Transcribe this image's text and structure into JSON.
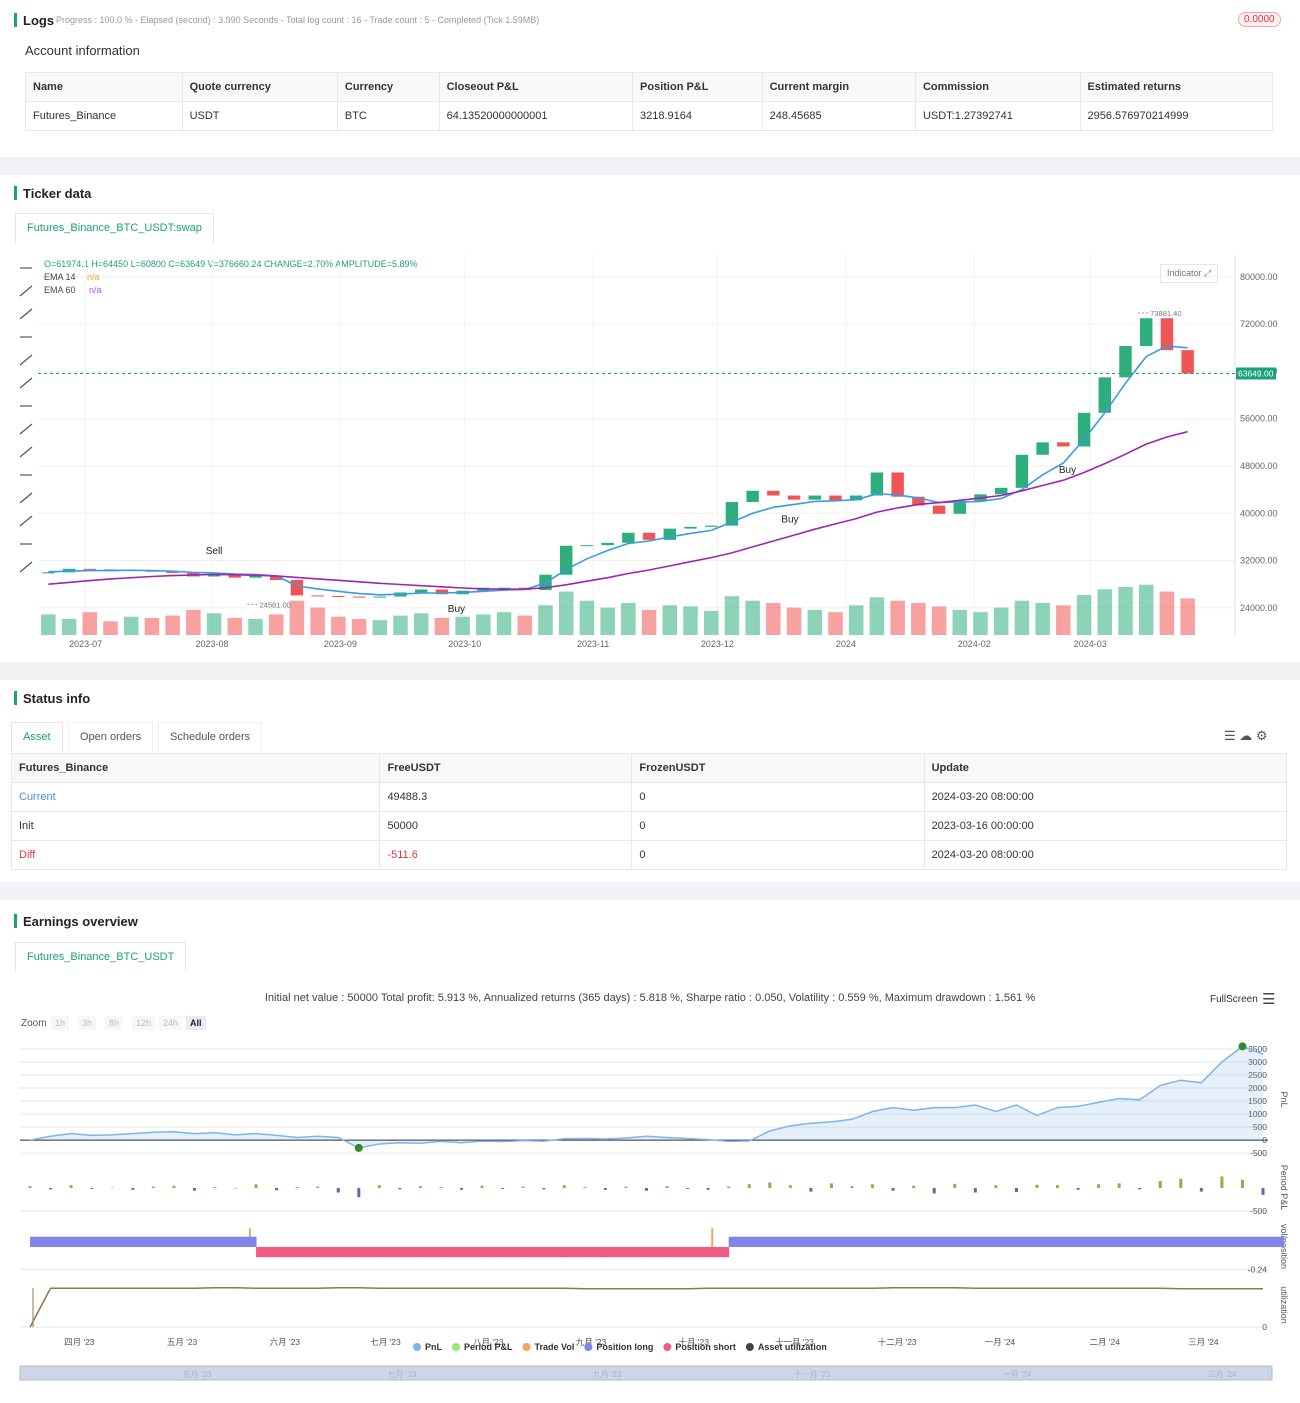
{
  "logs": {
    "title": "Logs",
    "progress": "Progress : 100.0 % - Elapsed (second) : 3.990  Seconds - Total log count : 16 - Trade count : 5 - Completed (Tick 1.59MB)",
    "badge": "0.0000",
    "account_title": "Account information",
    "table": {
      "columns": [
        "Name",
        "Quote currency",
        "Currency",
        "Closeout P&L",
        "Position P&L",
        "Current margin",
        "Commission",
        "Estimated returns"
      ],
      "rows": [
        [
          "Futures_Binance",
          "USDT",
          "BTC",
          "64.13520000000001",
          "3218.9164",
          "248.45685",
          "USDT:1.27392741",
          "2956.576970214999"
        ]
      ]
    }
  },
  "ticker": {
    "title": "Ticker data",
    "tab": "Futures_Binance_BTC_USDT:swap",
    "ohlc": "O=61974.1 H=64450 L=60800 C=63649 V=376660.24 CHANGE=2.70% AMPLITUDE=5.89%",
    "indicator": "Indicator"
  },
  "status": {
    "title": "Status info",
    "tabs": [
      "Asset",
      "Open orders",
      "Schedule orders"
    ],
    "table": {
      "columns": [
        "Futures_Binance",
        "FreeUSDT",
        "FrozenUSDT",
        "Update"
      ],
      "rows": [
        [
          "Current",
          "49488.3",
          "0",
          "2024-03-20 08:00:00"
        ],
        [
          "Init",
          "50000",
          "0",
          "2023-03-16 00:00:00"
        ],
        [
          "Diff",
          "-511.6",
          "0",
          "2024-03-20 08:00:00"
        ]
      ]
    }
  },
  "earnings": {
    "title": "Earnings overview",
    "tab": "Futures_Binance_BTC_USDT",
    "summary": "Initial net value : 50000 Total profit: 5.913 %, Annualized returns (365 days) : 5.818 %, Sharpe ratio : 0.050, Volatility : 0.559 %, Maximum drawdown : 1.561 %",
    "zoom_label": "Zoom",
    "zoom_buttons": [
      "1h",
      "3h",
      "8h",
      "12h",
      "24h",
      "All"
    ],
    "fullscreen": "FullScreen",
    "navigator_labels": [
      "五月 '23",
      "七月 '23",
      "九月 '23",
      "十一月 '23",
      "一月 '24",
      "三月 '24"
    ]
  },
  "chart_data": [
    {
      "type": "candlestick",
      "up_color": "#2eae7d",
      "down_color": "#f05454",
      "open": [
        29900,
        30000,
        30600,
        30500,
        30300,
        30400,
        30100,
        29900,
        29300,
        29600,
        29100,
        29400,
        28700,
        26100,
        26000,
        25900,
        25800,
        25900,
        26600,
        27100,
        26300,
        26900,
        27400,
        27400,
        27000,
        29600,
        34500,
        34600,
        35000,
        36700,
        35500,
        37400,
        37700,
        37900,
        41900,
        43800,
        43000,
        42300,
        43000,
        42200,
        43000,
        46900,
        42800,
        41300,
        39900,
        42100,
        43200,
        44300,
        49900,
        52000,
        51300,
        57000,
        63000,
        68300,
        73000,
        67600
      ],
      "close": [
        30000,
        30600,
        30500,
        30300,
        30400,
        30100,
        29900,
        29300,
        29600,
        29100,
        29400,
        28700,
        26100,
        26000,
        25900,
        25800,
        25900,
        26600,
        27100,
        26300,
        26900,
        27400,
        27400,
        27000,
        29600,
        34500,
        34600,
        35000,
        36700,
        35500,
        37400,
        37700,
        37900,
        41900,
        43800,
        43000,
        42300,
        43000,
        42200,
        43000,
        46900,
        42800,
        41300,
        39900,
        42100,
        43200,
        44300,
        49900,
        52000,
        51300,
        57000,
        63000,
        68300,
        73000,
        67600,
        63649
      ],
      "volume": [
        18,
        14,
        20,
        12,
        16,
        15,
        17,
        22,
        19,
        15,
        14,
        18,
        30,
        24,
        16,
        14,
        13,
        17,
        19,
        15,
        16,
        18,
        20,
        17,
        26,
        38,
        30,
        24,
        28,
        22,
        26,
        25,
        21,
        34,
        30,
        28,
        24,
        22,
        20,
        26,
        33,
        30,
        28,
        25,
        22,
        20,
        24,
        30,
        28,
        26,
        35,
        40,
        42,
        44,
        38,
        32
      ],
      "vlim": [
        0,
        70
      ],
      "series": [
        {
          "name": "EMA 14",
          "color": "#3a9be0",
          "status": "n/a",
          "status_color": "#f5a623",
          "values": [
            30100,
            30200,
            30300,
            30300,
            30350,
            30300,
            30200,
            30000,
            29900,
            29700,
            29650,
            29400,
            27700,
            27200,
            26800,
            26400,
            26200,
            26300,
            26500,
            26500,
            26600,
            26800,
            27000,
            27100,
            28200,
            30500,
            32300,
            33700,
            34900,
            35300,
            36000,
            36600,
            37100,
            38500,
            40000,
            41000,
            41500,
            42000,
            42100,
            42300,
            43300,
            43100,
            42600,
            41800,
            41900,
            42000,
            42500,
            44000,
            46500,
            48500,
            52500,
            57000,
            62000,
            66500,
            68300,
            68000
          ]
        },
        {
          "name": "EMA 60",
          "color": "#9c27b0",
          "status": "n/a",
          "status_color": "#b05bd0",
          "values": [
            28000,
            28300,
            28600,
            28900,
            29100,
            29300,
            29450,
            29550,
            29650,
            29600,
            29500,
            29400,
            29150,
            28900,
            28650,
            28400,
            28150,
            27950,
            27750,
            27550,
            27350,
            27200,
            27150,
            27150,
            27400,
            27900,
            28500,
            29100,
            29800,
            30400,
            31100,
            31800,
            32500,
            33300,
            34300,
            35300,
            36300,
            37300,
            38200,
            39100,
            40200,
            40900,
            41500,
            41800,
            42200,
            42600,
            43000,
            43800,
            44700,
            45600,
            46900,
            48400,
            50000,
            51700,
            52900,
            53800
          ]
        }
      ],
      "ylim": [
        19400,
        83700
      ],
      "yticks": [
        {
          "value": 24000,
          "label": "24000.00"
        },
        {
          "value": 32000,
          "label": "32000.00"
        },
        {
          "value": 40000,
          "label": "40000.00"
        },
        {
          "value": 48000,
          "label": "48000.00"
        },
        {
          "value": 56000,
          "label": "56000.00"
        },
        {
          "value": 64000,
          "label": "64000.00"
        },
        {
          "value": 72000,
          "label": "72000.00"
        },
        {
          "value": 80000,
          "label": "80000.00"
        }
      ],
      "xlim": [
        -0.5,
        55.5
      ],
      "xticks": [
        {
          "value": 1.8,
          "label": "2023-07"
        },
        {
          "value": 7.9,
          "label": "2023-08"
        },
        {
          "value": 14.1,
          "label": "2023-09"
        },
        {
          "value": 20.1,
          "label": "2023-10"
        },
        {
          "value": 26.3,
          "label": "2023-11"
        },
        {
          "value": 32.3,
          "label": "2023-12"
        },
        {
          "value": 38.5,
          "label": "2024"
        },
        {
          "value": 44.7,
          "label": "2024-02"
        },
        {
          "value": 50.3,
          "label": "2024-03"
        }
      ],
      "last_price": {
        "value": 63649,
        "label": "63649.00"
      },
      "high": {
        "x": 53,
        "value": 73881.4,
        "label": "73881.40"
      },
      "low": {
        "x": 10,
        "value": 24581,
        "label": "24581.00"
      },
      "annotations": [
        {
          "text": "Sell",
          "x": 8,
          "y": 33100
        },
        {
          "text": "Buy",
          "x": 19.7,
          "y": 23300
        },
        {
          "text": "Buy",
          "x": 35.8,
          "y": 38400
        },
        {
          "text": "Buy",
          "x": 49.2,
          "y": 46800
        }
      ]
    },
    {
      "type": "line",
      "xlim": [
        0,
        60
      ],
      "xticks": [
        {
          "value": 2.4,
          "label": "四月 '23"
        },
        {
          "value": 7.4,
          "label": "五月 '23"
        },
        {
          "value": 12.4,
          "label": "六月 '23"
        },
        {
          "value": 17.3,
          "label": "七月 '23"
        },
        {
          "value": 22.3,
          "label": "八月 '23"
        },
        {
          "value": 27.3,
          "label": "九月 '23"
        },
        {
          "value": 32.3,
          "label": "十月 '23"
        },
        {
          "value": 37.2,
          "label": "十一月 '23"
        },
        {
          "value": 42.2,
          "label": "十二月 '23"
        },
        {
          "value": 47.2,
          "label": "一月 '24"
        },
        {
          "value": 52.3,
          "label": "二月 '24"
        },
        {
          "value": 57.1,
          "label": "三月 '24"
        }
      ],
      "ylim": [
        -650,
        3770
      ],
      "yticks": [
        -500,
        0,
        500,
        1000,
        1500,
        2000,
        2500,
        3000,
        3500
      ],
      "ylabel": "PnL",
      "y2lim": [
        -590,
        610
      ],
      "y2ticks": [
        -500
      ],
      "y2label": "Period P&L",
      "y3lim": [
        -0.28,
        0.29
      ],
      "y3ticks": [
        -0.24
      ],
      "y3label": "vol/position",
      "y4lim": [
        -0.1,
        1.0
      ],
      "y4ticks": [
        0
      ],
      "y4label": "utilization",
      "series": [
        {
          "name": "PnL",
          "color": "#7cb5ec",
          "axis": "y",
          "values": [
            0,
            150,
            250,
            180,
            200,
            250,
            300,
            320,
            250,
            280,
            200,
            250,
            180,
            100,
            150,
            100,
            -300,
            -150,
            -100,
            -120,
            -50,
            -100,
            -40,
            -60,
            -20,
            -40,
            50,
            60,
            40,
            80,
            150,
            100,
            60,
            20,
            -50,
            -30,
            350,
            550,
            650,
            700,
            800,
            1100,
            1250,
            1150,
            1250,
            1250,
            1350,
            1100,
            1350,
            950,
            1250,
            1300,
            1450,
            1600,
            1550,
            2100,
            2300,
            2200,
            3000,
            3600,
            3300
          ]
        },
        {
          "name": "Period P&L",
          "color": "#8fae45",
          "negative_color": "#7b5ea7",
          "legend_color": "#90ed7d",
          "axis": "y2",
          "values": [
            40,
            -30,
            60,
            -20,
            10,
            -40,
            30,
            50,
            -60,
            20,
            -10,
            80,
            -50,
            20,
            30,
            -100,
            -200,
            60,
            -30,
            40,
            20,
            -40,
            50,
            -20,
            30,
            -30,
            60,
            20,
            -40,
            30,
            -60,
            40,
            -20,
            -40,
            30,
            80,
            120,
            60,
            -80,
            100,
            40,
            80,
            -60,
            50,
            -120,
            90,
            -100,
            60,
            -90,
            70,
            60,
            -40,
            80,
            100,
            -30,
            150,
            200,
            -80,
            250,
            180,
            -150
          ]
        },
        {
          "name": "Trade Vol",
          "color": "#f7a35c",
          "axis": "y3",
          "x": [
            10.7,
            33.2
          ],
          "values": [
            0.2,
            0.2
          ]
        },
        {
          "name": "Position long",
          "color": "#8085e9",
          "axis": "y3",
          "values": [
            0.11,
            0.11,
            0.11,
            0.11,
            0.11,
            0.11,
            0.11,
            0.11,
            0.11,
            0.11,
            0.11,
            null,
            null,
            null,
            null,
            null,
            null,
            null,
            null,
            null,
            null,
            null,
            null,
            null,
            null,
            null,
            null,
            null,
            null,
            null,
            null,
            null,
            null,
            null,
            0.11,
            0.11,
            0.11,
            0.11,
            0.11,
            0.11,
            0.11,
            0.11,
            0.11,
            0.11,
            0.11,
            0.11,
            0.11,
            0.11,
            0.11,
            0.11,
            0.11,
            0.11,
            0.11,
            0.11,
            0.11,
            0.11,
            0.11,
            0.11,
            0.11,
            0.11,
            0.11
          ]
        },
        {
          "name": "Position short",
          "color": "#f15c80",
          "axis": "y3",
          "values": [
            null,
            null,
            null,
            null,
            null,
            null,
            null,
            null,
            null,
            null,
            null,
            -0.11,
            -0.11,
            -0.11,
            -0.11,
            -0.11,
            -0.11,
            -0.11,
            -0.11,
            -0.11,
            -0.11,
            -0.11,
            -0.11,
            -0.11,
            -0.11,
            -0.11,
            -0.11,
            -0.11,
            -0.11,
            -0.11,
            -0.11,
            -0.11,
            -0.11,
            -0.11,
            null,
            null,
            null,
            null,
            null,
            null,
            null,
            null,
            null,
            null,
            null,
            null,
            null,
            null,
            null,
            null,
            null,
            null,
            null,
            null,
            null,
            null,
            null,
            null,
            null,
            null,
            null
          ]
        },
        {
          "name": "Asset utilization",
          "color": "#8d7b45",
          "legend_color": "#434348",
          "axis": "y4",
          "values": [
            0,
            0.79,
            0.79,
            0.79,
            0.79,
            0.79,
            0.79,
            0.79,
            0.79,
            0.8,
            0.8,
            0.79,
            0.79,
            0.79,
            0.79,
            0.8,
            0.8,
            0.79,
            0.79,
            0.79,
            0.79,
            0.79,
            0.79,
            0.79,
            0.79,
            0.79,
            0.79,
            0.78,
            0.78,
            0.78,
            0.78,
            0.78,
            0.78,
            0.79,
            0.79,
            0.79,
            0.79,
            0.79,
            0.79,
            0.79,
            0.79,
            0.79,
            0.8,
            0.8,
            0.8,
            0.8,
            0.79,
            0.79,
            0.79,
            0.79,
            0.79,
            0.79,
            0.79,
            0.79,
            0.79,
            0.79,
            0.78,
            0.78,
            0.78,
            0.78,
            0.78
          ]
        }
      ]
    }
  ]
}
